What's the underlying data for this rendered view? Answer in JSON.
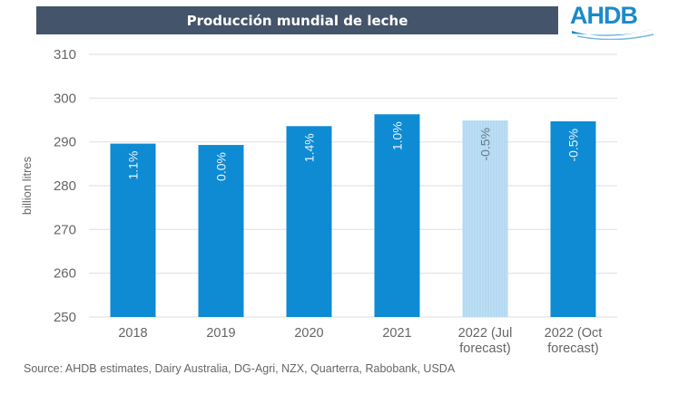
{
  "header": {
    "title": "Producción mundial de leche",
    "logo_text": "AHDB"
  },
  "source": "Source: AHDB estimates, Dairy Australia, DG-Agri, NZX, Quarterra, Rabobank, USDA",
  "colors": {
    "title_bar": "#44546A",
    "bar": "#0E8BD3",
    "bar_forecast": "#BFE0F4",
    "logo": "#1B8AC9"
  },
  "chart_data": {
    "type": "bar",
    "title": "Producción mundial de leche",
    "xlabel": "",
    "ylabel": "billion litres",
    "ylim": [
      250,
      310
    ],
    "yticks": [
      250,
      260,
      270,
      280,
      290,
      300,
      310
    ],
    "grid": true,
    "categories": [
      [
        "2018"
      ],
      [
        "2019"
      ],
      [
        "2020"
      ],
      [
        "2021"
      ],
      [
        "2022 (Jul",
        "forecast)"
      ],
      [
        "2022 (Oct",
        "forecast)"
      ]
    ],
    "values": [
      289.6,
      289.3,
      293.6,
      296.3,
      294.9,
      294.7
    ],
    "data_labels": [
      "1.1%",
      "0.0%",
      "1.4%",
      "1.0%",
      "-0.5%",
      "-0.5%"
    ],
    "styles": [
      "solid",
      "solid",
      "solid",
      "solid",
      "hatched",
      "solid"
    ]
  }
}
